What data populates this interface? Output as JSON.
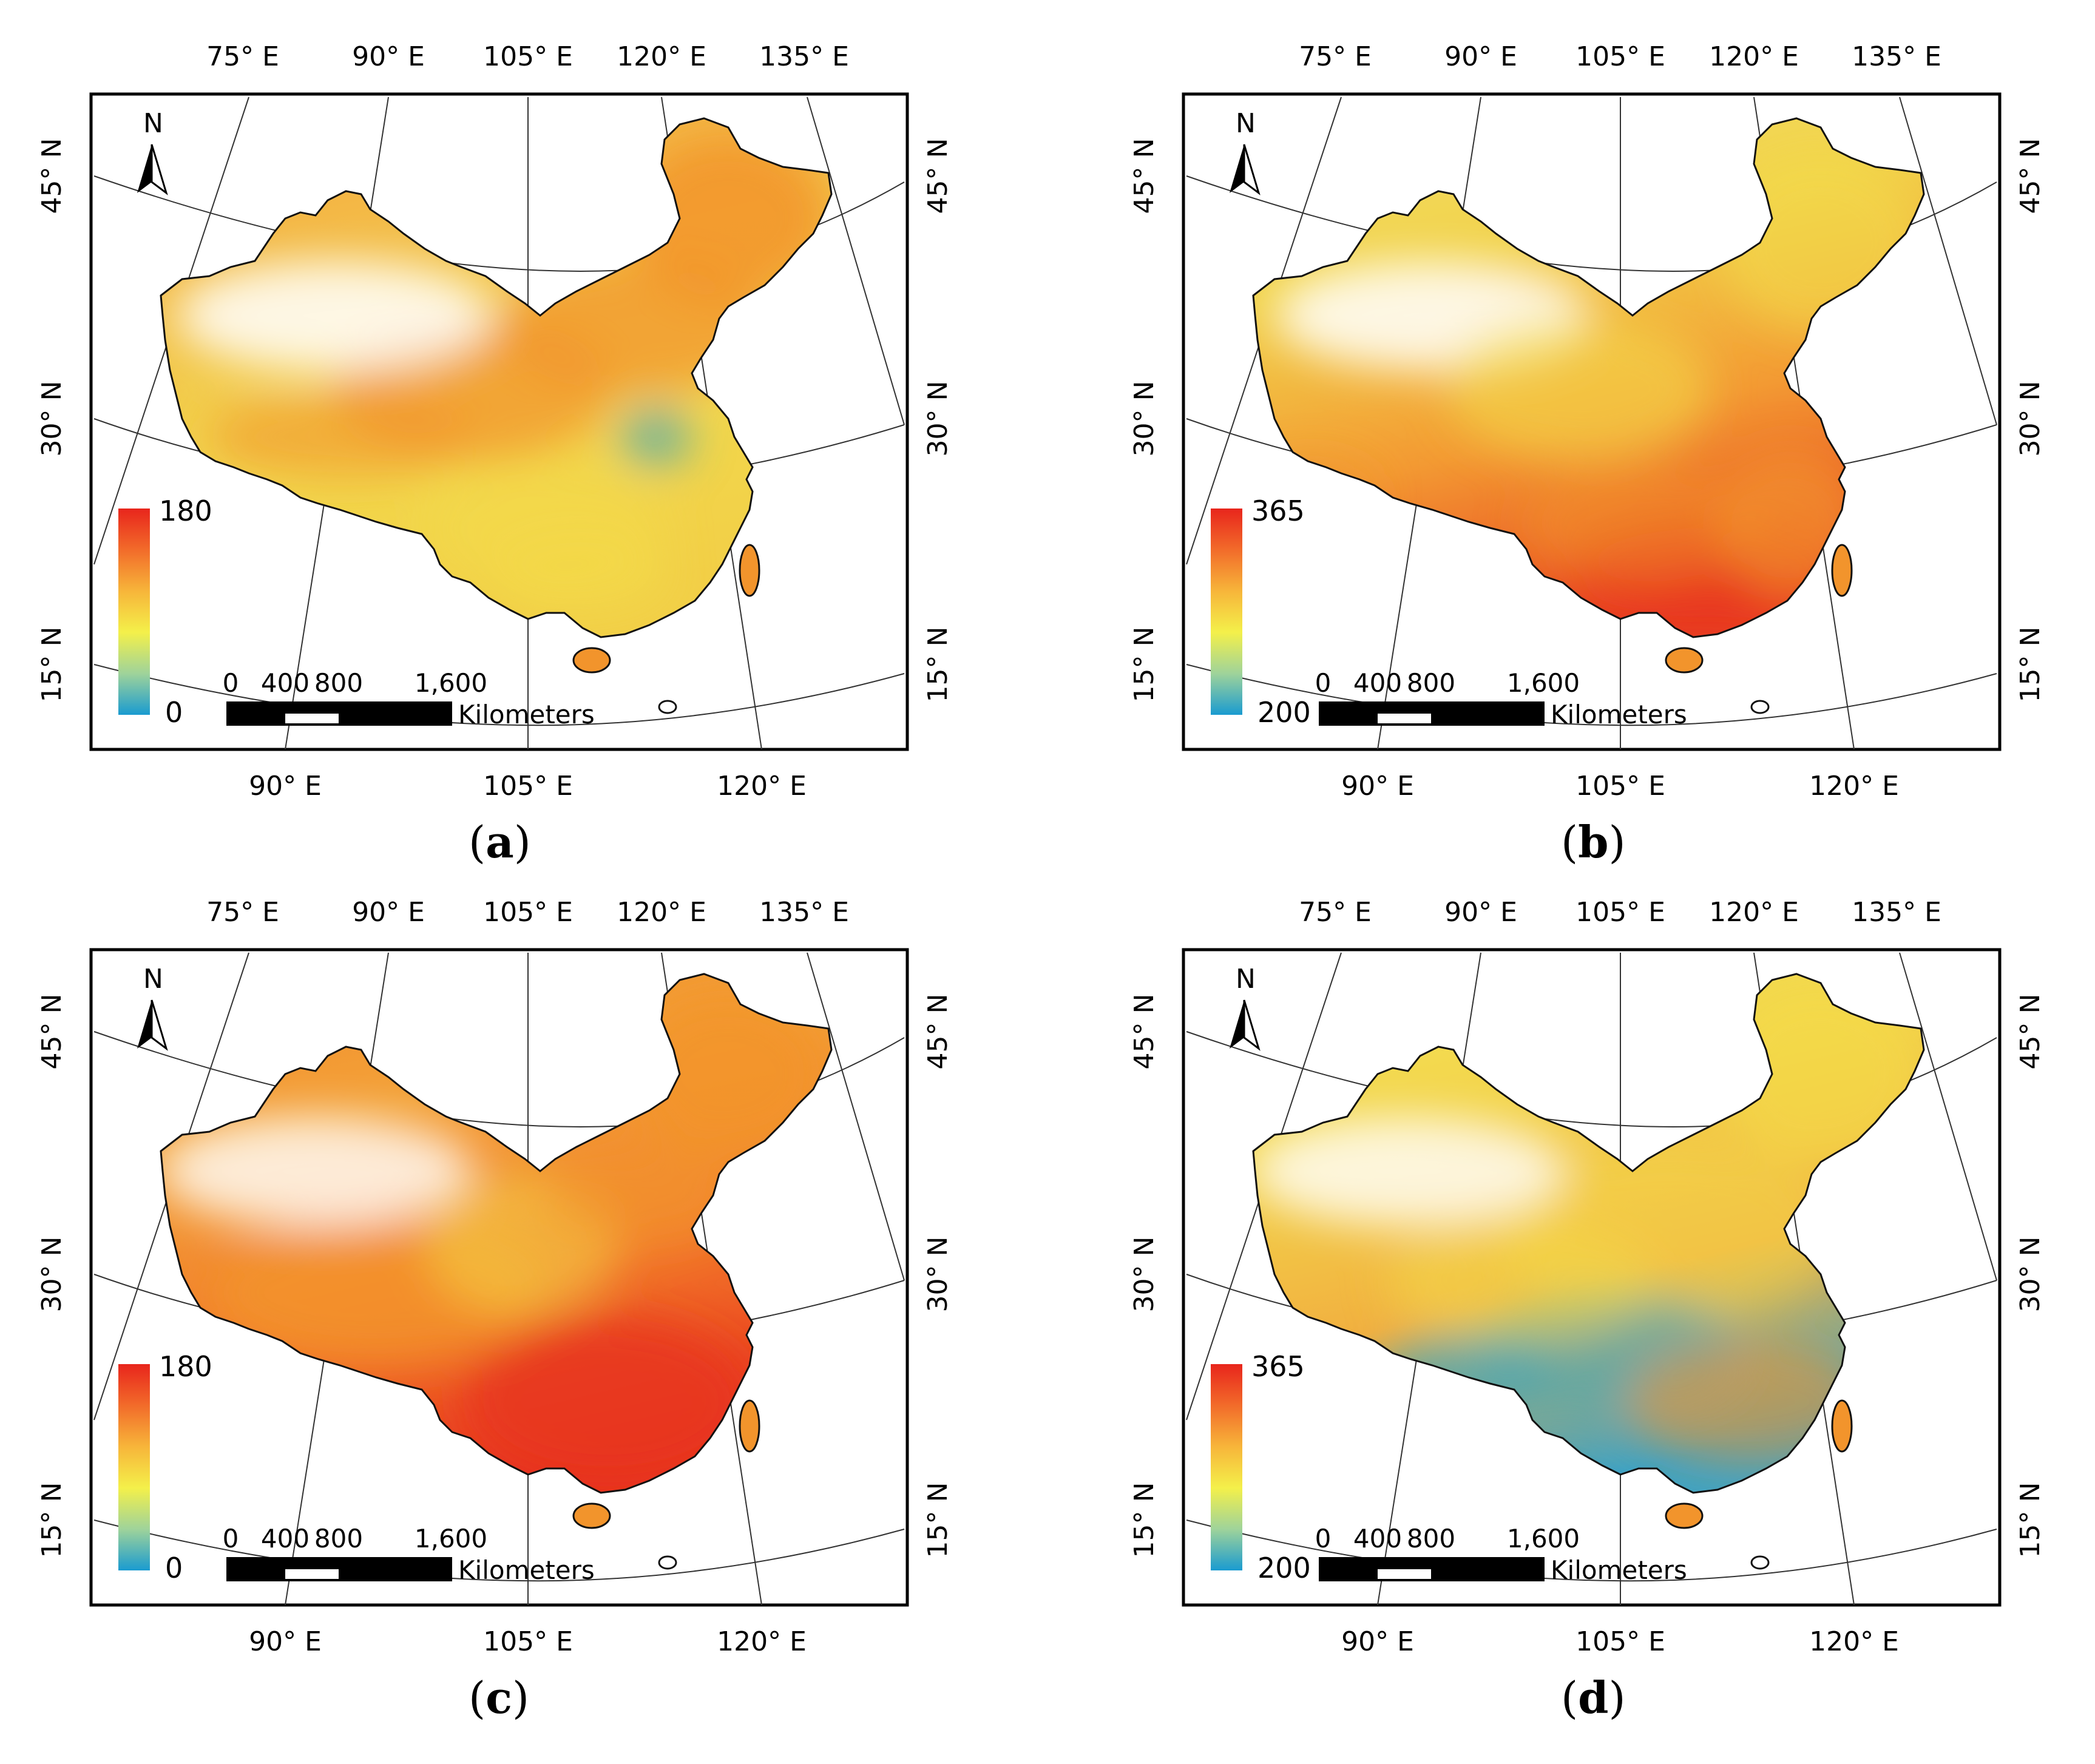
{
  "figure": {
    "panels": [
      {
        "id": "a",
        "caption_letter": "a",
        "legend": {
          "max": "180",
          "min": "0"
        },
        "dominant": "orange-north",
        "lon_top": [
          "75° E",
          "90° E",
          "105° E",
          "120° E",
          "135° E"
        ],
        "lon_bottom": [
          "90° E",
          "105° E",
          "120° E"
        ],
        "lat_left": [
          "45° N",
          "30° N",
          "15° N"
        ],
        "lat_right": [
          "45° N",
          "30° N",
          "15° N"
        ]
      },
      {
        "id": "b",
        "caption_letter": "b",
        "legend": {
          "max": "365",
          "min": "200"
        },
        "dominant": "red-south",
        "lon_top": [
          "75° E",
          "90° E",
          "105° E",
          "120° E",
          "135° E"
        ],
        "lon_bottom": [
          "90° E",
          "105° E",
          "120° E"
        ],
        "lat_left": [
          "45° N",
          "30° N",
          "15° N"
        ],
        "lat_right": [
          "45° N",
          "30° N",
          "15° N"
        ]
      },
      {
        "id": "c",
        "caption_letter": "c",
        "legend": {
          "max": "180",
          "min": "0"
        },
        "dominant": "red-southeast",
        "lon_top": [
          "75° E",
          "90° E",
          "105° E",
          "120° E",
          "135° E"
        ],
        "lon_bottom": [
          "90° E",
          "105° E",
          "120° E"
        ],
        "lat_left": [
          "45° N",
          "30° N",
          "15° N"
        ],
        "lat_right": [
          "45° N",
          "30° N",
          "15° N"
        ]
      },
      {
        "id": "d",
        "caption_letter": "d",
        "legend": {
          "max": "365",
          "min": "200"
        },
        "dominant": "blue-south",
        "lon_top": [
          "75° E",
          "90° E",
          "105° E",
          "120° E",
          "135° E"
        ],
        "lon_bottom": [
          "90° E",
          "105° E",
          "120° E"
        ],
        "lat_left": [
          "45° N",
          "30° N",
          "15° N"
        ],
        "lat_right": [
          "45° N",
          "30° N",
          "15° N"
        ]
      }
    ],
    "north_arrow_label": "N",
    "scale_bar": {
      "ticks": [
        "0",
        "400",
        "800",
        "1,600"
      ],
      "unit": "Kilometers"
    },
    "colors": {
      "ramp": [
        "#1a9bd0",
        "#9fd39a",
        "#f4f04a",
        "#f7b53a",
        "#f26b2a",
        "#e8251c"
      ],
      "orange": "#f2942c",
      "yellow": "#f3dc4a",
      "red": "#e8361f",
      "teal": "#4aa7b5"
    }
  }
}
